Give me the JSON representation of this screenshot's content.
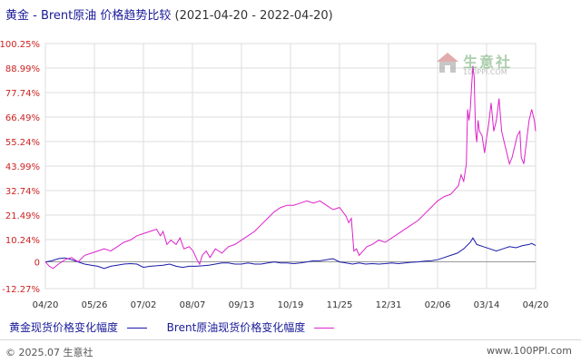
{
  "title": {
    "main": "黄金 - Brent原油 价格趋势比较",
    "range": "(2021-04-20 - 2022-04-20)"
  },
  "watermark": {
    "name": "生意社",
    "url": "100PPI.COM"
  },
  "footer": {
    "copyright": "© 2025.07 生意社",
    "site": "www.100PPI.com"
  },
  "colors": {
    "gold": "#1a1aa8",
    "brent": "#dd22cc",
    "ytick": "#cc2222",
    "xtick": "#333333",
    "grid": "#dddddd"
  },
  "chart_data": {
    "type": "line",
    "yunit": "%",
    "ylim": [
      -12.27,
      100.25
    ],
    "y_ticks": [
      {
        "label": "100.25%",
        "value": 100.25
      },
      {
        "label": "88.99%",
        "value": 88.99
      },
      {
        "label": "77.74%",
        "value": 77.74
      },
      {
        "label": "66.49%",
        "value": 66.49
      },
      {
        "label": "55.24%",
        "value": 55.24
      },
      {
        "label": "43.99%",
        "value": 43.99
      },
      {
        "label": "32.74%",
        "value": 32.74
      },
      {
        "label": "21.49%",
        "value": 21.49
      },
      {
        "label": "10.24%",
        "value": 10.24
      },
      {
        "label": "0",
        "value": 0
      },
      {
        "label": "-12.27%",
        "value": -12.27
      }
    ],
    "x_ticks": [
      "04/20",
      "05/26",
      "07/02",
      "08/07",
      "09/13",
      "10/19",
      "11/25",
      "12/31",
      "02/06",
      "03/14",
      "04/20"
    ],
    "grid": true,
    "legend_position": "bottom",
    "series": [
      {
        "name": "黄金现货价格变化幅度",
        "color_key": "gold",
        "values": [
          [
            0,
            0
          ],
          [
            5,
            0.5
          ],
          [
            10,
            1.5
          ],
          [
            15,
            1.8
          ],
          [
            20,
            1.0
          ],
          [
            25,
            0.0
          ],
          [
            30,
            -1.0
          ],
          [
            35,
            -1.5
          ],
          [
            40,
            -2.0
          ],
          [
            45,
            -3.0
          ],
          [
            50,
            -2.0
          ],
          [
            55,
            -1.5
          ],
          [
            60,
            -1.0
          ],
          [
            65,
            -0.8
          ],
          [
            70,
            -1.0
          ],
          [
            75,
            -2.5
          ],
          [
            80,
            -2.0
          ],
          [
            85,
            -1.8
          ],
          [
            90,
            -1.5
          ],
          [
            95,
            -1.0
          ],
          [
            100,
            -2.0
          ],
          [
            105,
            -2.5
          ],
          [
            110,
            -2.0
          ],
          [
            115,
            -2.0
          ],
          [
            120,
            -1.8
          ],
          [
            125,
            -1.5
          ],
          [
            130,
            -1.0
          ],
          [
            135,
            -0.5
          ],
          [
            140,
            -0.5
          ],
          [
            145,
            -1.0
          ],
          [
            150,
            -1.0
          ],
          [
            155,
            -0.5
          ],
          [
            160,
            -1.0
          ],
          [
            165,
            -1.0
          ],
          [
            170,
            -0.5
          ],
          [
            175,
            0.0
          ],
          [
            180,
            -0.5
          ],
          [
            185,
            -0.5
          ],
          [
            190,
            -0.8
          ],
          [
            195,
            -0.5
          ],
          [
            200,
            0.0
          ],
          [
            205,
            0.5
          ],
          [
            210,
            0.5
          ],
          [
            215,
            1.0
          ],
          [
            220,
            1.5
          ],
          [
            225,
            0.0
          ],
          [
            230,
            -0.5
          ],
          [
            235,
            -1.0
          ],
          [
            240,
            -0.5
          ],
          [
            245,
            -1.0
          ],
          [
            250,
            -0.8
          ],
          [
            255,
            -1.0
          ],
          [
            260,
            -0.8
          ],
          [
            265,
            -0.5
          ],
          [
            270,
            -0.8
          ],
          [
            275,
            -0.5
          ],
          [
            280,
            -0.2
          ],
          [
            285,
            0.0
          ],
          [
            290,
            0.3
          ],
          [
            295,
            0.5
          ],
          [
            300,
            1.0
          ],
          [
            305,
            2.0
          ],
          [
            310,
            3.0
          ],
          [
            315,
            4.0
          ],
          [
            320,
            6.0
          ],
          [
            325,
            9.0
          ],
          [
            327,
            11.0
          ],
          [
            330,
            8.0
          ],
          [
            335,
            7.0
          ],
          [
            340,
            6.0
          ],
          [
            345,
            5.0
          ],
          [
            350,
            6.0
          ],
          [
            355,
            7.0
          ],
          [
            360,
            6.5
          ],
          [
            365,
            7.5
          ],
          [
            370,
            8.0
          ],
          [
            372,
            8.5
          ],
          [
            375,
            7.5
          ]
        ]
      },
      {
        "name": "Brent原油现货价格变化幅度",
        "color_key": "brent",
        "values": [
          [
            0,
            0
          ],
          [
            3,
            -2.0
          ],
          [
            6,
            -3.0
          ],
          [
            10,
            -1.0
          ],
          [
            15,
            1.0
          ],
          [
            20,
            2.0
          ],
          [
            25,
            0.0
          ],
          [
            30,
            3.0
          ],
          [
            35,
            4.0
          ],
          [
            40,
            5.0
          ],
          [
            45,
            6.0
          ],
          [
            50,
            5.0
          ],
          [
            55,
            7.0
          ],
          [
            60,
            9.0
          ],
          [
            65,
            10.0
          ],
          [
            70,
            12.0
          ],
          [
            75,
            13.0
          ],
          [
            80,
            14.0
          ],
          [
            85,
            15.0
          ],
          [
            88,
            12.0
          ],
          [
            90,
            14.0
          ],
          [
            93,
            8.0
          ],
          [
            96,
            10.0
          ],
          [
            100,
            8.0
          ],
          [
            103,
            11.0
          ],
          [
            106,
            6.0
          ],
          [
            110,
            7.0
          ],
          [
            113,
            5.0
          ],
          [
            116,
            1.0
          ],
          [
            118,
            -1.0
          ],
          [
            120,
            3.0
          ],
          [
            123,
            5.0
          ],
          [
            126,
            2.0
          ],
          [
            130,
            6.0
          ],
          [
            135,
            4.0
          ],
          [
            140,
            7.0
          ],
          [
            145,
            8.0
          ],
          [
            150,
            10.0
          ],
          [
            155,
            12.0
          ],
          [
            160,
            14.0
          ],
          [
            165,
            17.0
          ],
          [
            170,
            20.0
          ],
          [
            175,
            23.0
          ],
          [
            180,
            25.0
          ],
          [
            185,
            26.0
          ],
          [
            190,
            26.0
          ],
          [
            195,
            27.0
          ],
          [
            200,
            28.0
          ],
          [
            205,
            27.0
          ],
          [
            210,
            28.0
          ],
          [
            215,
            26.0
          ],
          [
            220,
            24.0
          ],
          [
            225,
            25.0
          ],
          [
            230,
            21.0
          ],
          [
            232,
            18.0
          ],
          [
            234,
            20.0
          ],
          [
            236,
            5.0
          ],
          [
            238,
            6.0
          ],
          [
            240,
            3.0
          ],
          [
            243,
            5.0
          ],
          [
            246,
            7.0
          ],
          [
            250,
            8.0
          ],
          [
            255,
            10.0
          ],
          [
            260,
            9.0
          ],
          [
            265,
            11.0
          ],
          [
            270,
            13.0
          ],
          [
            275,
            15.0
          ],
          [
            280,
            17.0
          ],
          [
            285,
            19.0
          ],
          [
            290,
            22.0
          ],
          [
            295,
            25.0
          ],
          [
            300,
            28.0
          ],
          [
            305,
            30.0
          ],
          [
            310,
            31.0
          ],
          [
            313,
            33.0
          ],
          [
            316,
            35.0
          ],
          [
            318,
            40.0
          ],
          [
            320,
            37.0
          ],
          [
            322,
            45.0
          ],
          [
            323,
            70.0
          ],
          [
            324,
            65.0
          ],
          [
            325,
            70.0
          ],
          [
            326,
            80.0
          ],
          [
            327,
            90.0
          ],
          [
            328,
            85.0
          ],
          [
            329,
            60.0
          ],
          [
            330,
            55.0
          ],
          [
            331,
            65.0
          ],
          [
            332,
            60.0
          ],
          [
            334,
            58.0
          ],
          [
            336,
            50.0
          ],
          [
            337,
            55.0
          ],
          [
            339,
            63.0
          ],
          [
            341,
            73.0
          ],
          [
            343,
            60.0
          ],
          [
            345,
            65.0
          ],
          [
            347,
            75.0
          ],
          [
            349,
            60.0
          ],
          [
            351,
            55.0
          ],
          [
            353,
            50.0
          ],
          [
            355,
            45.0
          ],
          [
            357,
            48.0
          ],
          [
            359,
            53.0
          ],
          [
            361,
            58.0
          ],
          [
            363,
            60.0
          ],
          [
            364,
            48.0
          ],
          [
            366,
            45.0
          ],
          [
            368,
            55.0
          ],
          [
            370,
            65.0
          ],
          [
            372,
            70.0
          ],
          [
            374,
            65.0
          ],
          [
            375,
            60.0
          ]
        ]
      }
    ]
  }
}
